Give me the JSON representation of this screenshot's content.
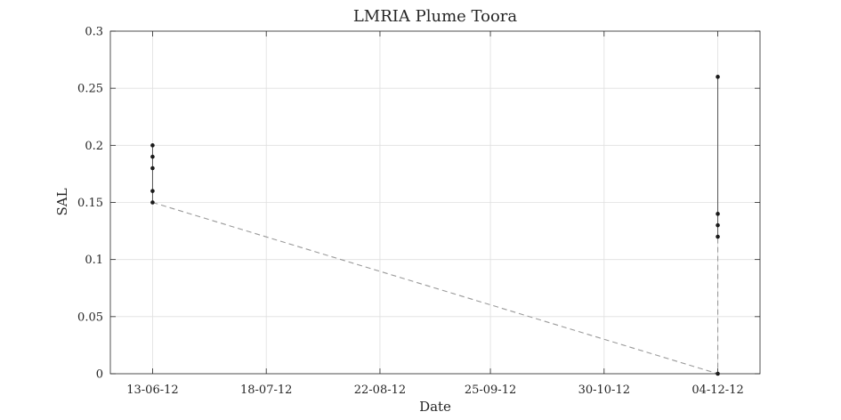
{
  "chart_data": {
    "type": "line",
    "title": "LMRIA Plume Toora",
    "xlabel": "Date",
    "ylabel": "SAL",
    "x_ticks": [
      "13-06-12",
      "18-07-12",
      "22-08-12",
      "25-09-12",
      "30-10-12",
      "04-12-12"
    ],
    "x_tick_values": [
      "2012-06-13",
      "2012-07-18",
      "2012-08-22",
      "2012-09-25",
      "2012-10-30",
      "2012-12-04"
    ],
    "xlim": [
      "2012-05-31",
      "2012-12-17"
    ],
    "ylim": [
      0,
      0.3
    ],
    "y_ticks": [
      "0",
      "0.05",
      "0.1",
      "0.15",
      "0.2",
      "0.25",
      "0.3"
    ],
    "y_tick_values": [
      0,
      0.05,
      0.1,
      0.15,
      0.2,
      0.25,
      0.3
    ],
    "grid": true,
    "series": [
      {
        "style": "points",
        "points": [
          {
            "x": "2012-06-13",
            "y": 0.2
          },
          {
            "x": "2012-06-13",
            "y": 0.19
          },
          {
            "x": "2012-06-13",
            "y": 0.18
          },
          {
            "x": "2012-06-13",
            "y": 0.16
          },
          {
            "x": "2012-06-13",
            "y": 0.15
          },
          {
            "x": "2012-12-04",
            "y": 0.26
          },
          {
            "x": "2012-12-04",
            "y": 0.14
          },
          {
            "x": "2012-12-04",
            "y": 0.13
          },
          {
            "x": "2012-12-04",
            "y": 0.12
          },
          {
            "x": "2012-12-04",
            "y": 0
          }
        ]
      },
      {
        "style": "solid-vertical-range",
        "ranges": [
          {
            "x": "2012-06-13",
            "y_min": 0.15,
            "y_max": 0.2
          },
          {
            "x": "2012-12-04",
            "y_min": 0.12,
            "y_max": 0.26
          }
        ]
      },
      {
        "style": "dashed-trend",
        "points": [
          {
            "x": "2012-06-13",
            "y": 0.15
          },
          {
            "x": "2012-12-04",
            "y": 0
          },
          {
            "x": "2012-12-04",
            "y": 0.12
          }
        ]
      }
    ],
    "colors": {
      "points": "#1a1a1a",
      "range_line": "#555555",
      "dashed_line": "#9a9a9a",
      "grid": "#dfdfdf",
      "axis": "#262626"
    }
  }
}
